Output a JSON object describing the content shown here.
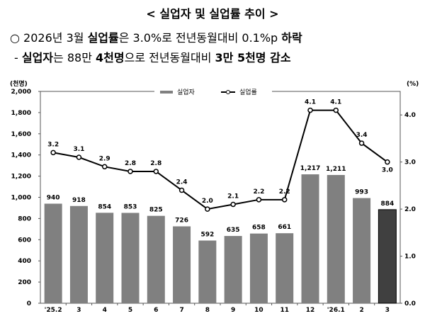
{
  "title": "< 실업자 및 실업률 추이 >",
  "summary": {
    "line1": [
      {
        "text": "○ 2026년 3월 ",
        "bold": false
      },
      {
        "text": "실업률",
        "bold": true
      },
      {
        "text": "은 3.0%로 전년동월대비 0.1%p ",
        "bold": false
      },
      {
        "text": "하락",
        "bold": true
      }
    ],
    "line2": [
      {
        "text": "- ",
        "bold": false
      },
      {
        "text": "실업자",
        "bold": true
      },
      {
        "text": "는 88만 ",
        "bold": false
      },
      {
        "text": "4천명",
        "bold": true
      },
      {
        "text": "으로 전년동월대비 ",
        "bold": false
      },
      {
        "text": "3만 5천명 감소",
        "bold": true
      }
    ]
  },
  "chart_data": {
    "type": "bar+line",
    "categories": [
      "'25.2",
      "3",
      "4",
      "5",
      "6",
      "7",
      "8",
      "9",
      "10",
      "11",
      "12",
      "'26.1",
      "2",
      "3"
    ],
    "series": [
      {
        "name": "실업자",
        "type": "bar",
        "axis": "left",
        "values": [
          940,
          918,
          854,
          853,
          825,
          726,
          592,
          635,
          658,
          661,
          1217,
          1211,
          993,
          884
        ],
        "labels": [
          "940",
          "918",
          "854",
          "853",
          "825",
          "726",
          "592",
          "635",
          "658",
          "661",
          "1,217",
          "1,211",
          "993",
          "884"
        ],
        "color": "#808080",
        "highlight_color": "#404040",
        "highlight_index": 13
      },
      {
        "name": "실업률",
        "type": "line",
        "axis": "right",
        "values": [
          3.2,
          3.1,
          2.9,
          2.8,
          2.8,
          2.4,
          2.0,
          2.1,
          2.2,
          2.2,
          4.1,
          4.1,
          3.4,
          3.0
        ],
        "labels": [
          "3.2",
          "3.1",
          "2.9",
          "2.8",
          "2.8",
          "2.4",
          "2.0",
          "2.1",
          "2.2",
          "2.2",
          "4.1",
          "4.1",
          "3.4",
          "3.0"
        ],
        "color": "#000000"
      }
    ],
    "left_axis": {
      "unit": "(천명)",
      "ylim": [
        0,
        2000
      ],
      "ticks": [
        0,
        200,
        400,
        600,
        800,
        1000,
        1200,
        1400,
        1600,
        1800,
        2000
      ],
      "tick_labels": [
        "0",
        "200",
        "400",
        "600",
        "800",
        "1,000",
        "1,200",
        "1,400",
        "1,600",
        "1,800",
        "2,000"
      ]
    },
    "right_axis": {
      "unit": "(%)",
      "ylim": [
        0,
        4.5
      ],
      "ticks": [
        0,
        1,
        2,
        3,
        4
      ],
      "tick_labels": [
        "0.0",
        "1.0",
        "2.0",
        "3.0",
        "4.0"
      ]
    },
    "legend": {
      "position": "top-center",
      "items": [
        "실업자",
        "실업률"
      ]
    },
    "grid": false
  }
}
